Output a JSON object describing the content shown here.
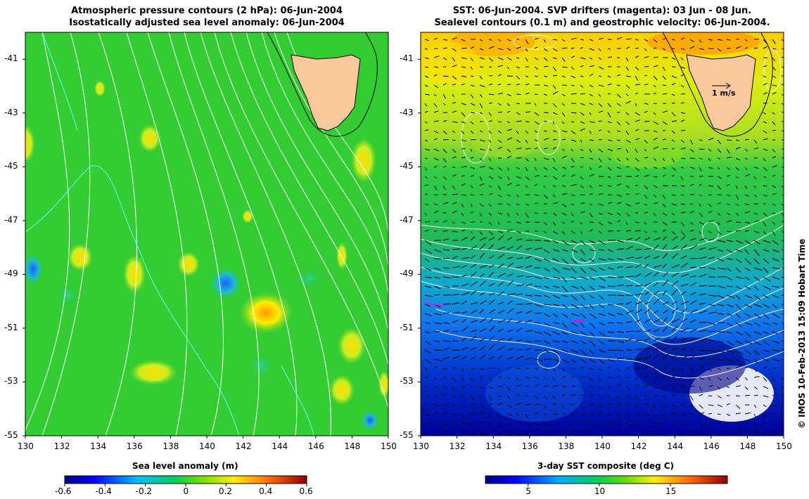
{
  "left_panel": {
    "title_line1": "Atmospheric pressure contours (2 hPa): 06-Jun-2004",
    "title_line2": "Isostatically adjusted sea level anomaly: 06-Jun-2004",
    "colorbar_label": "Sea level anomaly (m)",
    "colorbar_ticks": [
      "-0.6",
      "-0.4",
      "-0.2",
      "0",
      "0.2",
      "0.4",
      "0.6"
    ],
    "colorbar_values": [
      -0.6,
      -0.4,
      -0.2,
      0,
      0.2,
      0.4,
      0.6
    ]
  },
  "right_panel": {
    "title_line1": "SST: 06-Jun-2004. SVP drifters (magenta): 03 Jun - 08 Jun.",
    "title_line2": "Sealevel contours (0.1 m) and geostrophic velocity: 06-Jun-2004.",
    "colorbar_label": "3-day SST composite (deg C)",
    "colorbar_ticks": [
      "5",
      "10",
      "15"
    ],
    "colorbar_values": [
      5,
      10,
      15
    ],
    "colorbar_range": [
      2,
      19
    ],
    "velocity_scale_label": "1 m/s"
  },
  "lat_ticks": [
    "-41",
    "-43",
    "-45",
    "-47",
    "-49",
    "-51",
    "-53",
    "-55"
  ],
  "lon_ticks": [
    "130",
    "132",
    "134",
    "136",
    "138",
    "140",
    "142",
    "144",
    "146",
    "148",
    "150"
  ],
  "lat_range": [
    -55,
    -40
  ],
  "lon_range": [
    130,
    150
  ],
  "credit": "© IMOS 10-Feb-2013 15:09 Hobart Time",
  "colors": {
    "land": "#f9c89b",
    "sla_background": "#33cc33",
    "pressure_contour": "#ffffff",
    "sst_contour": "#ffffff",
    "drifter": "#ff00ff"
  }
}
